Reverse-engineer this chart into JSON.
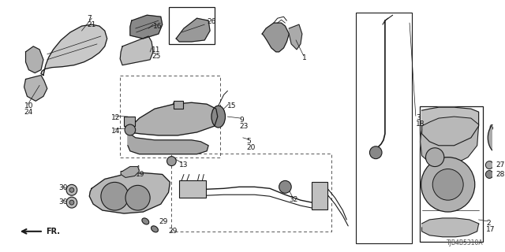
{
  "bg_color": "#ffffff",
  "line_color": "#1a1a1a",
  "gray_fill": "#888888",
  "light_gray": "#bbbbbb",
  "diagram_code": "TJB4B5310A",
  "fig_w": 6.4,
  "fig_h": 3.2,
  "dpi": 100
}
